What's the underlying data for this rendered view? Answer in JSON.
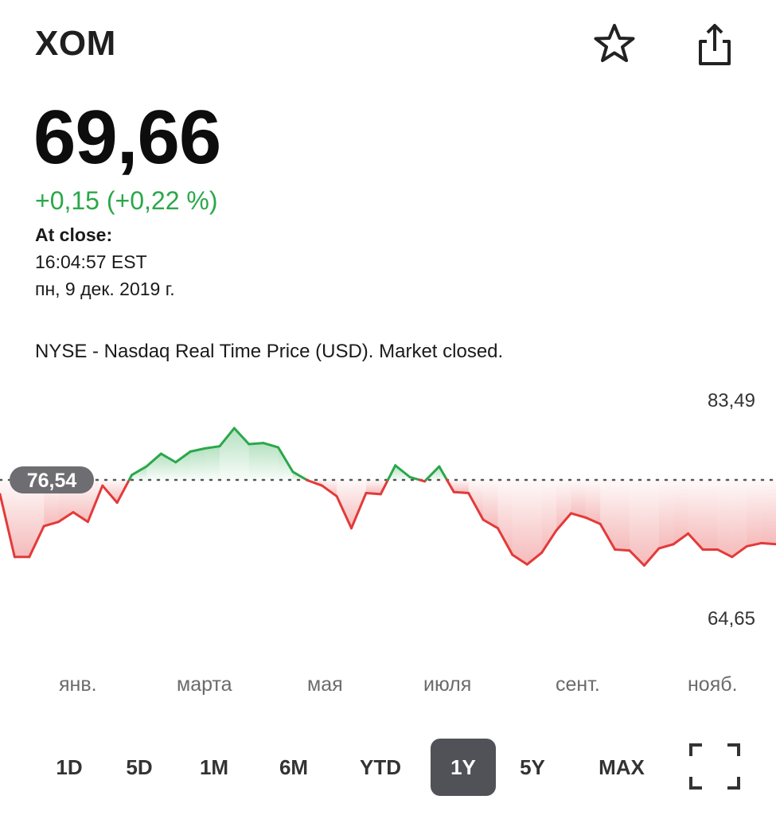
{
  "header": {
    "ticker": "XOM",
    "star_icon": "star-outline-icon",
    "share_icon": "share-icon"
  },
  "quote": {
    "price": "69,66",
    "change": "+0,15 (+0,22 %)",
    "close_label": "At close:",
    "close_time": "16:04:57 EST",
    "close_date": "пн, 9 дек. 2019 г.",
    "exchange_note": "NYSE - Nasdaq Real Time Price (USD). Market closed."
  },
  "colors": {
    "up": "#2aa84a",
    "down": "#e33a3a",
    "active_period_bg": "#515158",
    "baseline_badge_bg": "#6d6d72"
  },
  "chart_data": {
    "type": "line",
    "range_high_label": "83,49",
    "range_low_label": "64,65",
    "baseline_label": "76,54",
    "ylim": [
      64.65,
      83.49
    ],
    "baseline": 76.54,
    "x_labels": [
      "янв.",
      "марта",
      "мая",
      "июля",
      "сент.",
      "нояб."
    ],
    "series": [
      {
        "values": [
          75.2,
          69.3,
          69.3,
          72.2,
          72.6,
          73.5,
          72.6,
          76.0,
          74.4,
          77.0,
          77.8,
          79.0,
          78.2,
          79.2,
          79.5,
          79.7,
          81.4,
          79.9,
          80.0,
          79.6,
          77.3,
          76.5,
          76.0,
          75.0,
          72.0,
          75.3,
          75.2,
          77.9,
          76.8,
          76.4,
          77.8,
          75.4,
          75.3,
          72.8,
          72.0,
          69.5,
          68.6,
          69.7,
          71.8,
          73.4,
          73.0,
          72.4,
          70.0,
          69.9,
          68.5,
          70.1,
          70.5,
          71.5,
          70.0,
          70.0,
          69.3,
          70.3,
          70.6,
          70.5
        ]
      }
    ]
  },
  "periods": {
    "items": [
      "1D",
      "5D",
      "1M",
      "6M",
      "YTD",
      "1Y",
      "5Y",
      "MAX"
    ],
    "active": "1Y",
    "fullscreen_icon": "fullscreen-icon"
  }
}
